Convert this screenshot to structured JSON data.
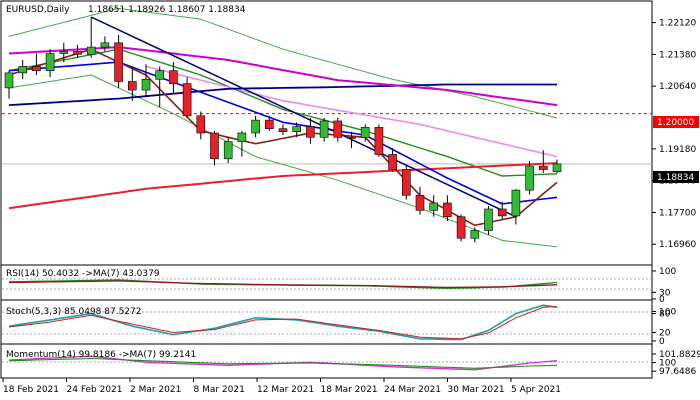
{
  "header": {
    "symbol": "EURUSD,Daily",
    "ohlc": "1.18651 1.18926 1.18607 1.18834"
  },
  "chart_data": {
    "type": "candlestick",
    "ylim": [
      1.165,
      1.226
    ],
    "y_ticks": [
      "1.22120",
      "1.21380",
      "1.20640",
      "1.19180",
      "1.18440",
      "1.17700",
      "1.16960"
    ],
    "price_label": "1.18834",
    "level_label": "1.20000",
    "level_value": 1.2,
    "x_labels": [
      "18 Feb 2021",
      "24 Feb 2021",
      "2 Mar 2021",
      "8 Mar 2021",
      "12 Mar 2021",
      "18 Mar 2021",
      "24 Mar 2021",
      "30 Mar 2021",
      "5 Apr 2021"
    ],
    "candles": [
      {
        "o": 1.206,
        "h": 1.21,
        "l": 1.2035,
        "c": 1.2095
      },
      {
        "o": 1.2095,
        "h": 1.2125,
        "l": 1.208,
        "c": 1.211
      },
      {
        "o": 1.211,
        "h": 1.214,
        "l": 1.209,
        "c": 1.21
      },
      {
        "o": 1.21,
        "h": 1.215,
        "l": 1.2085,
        "c": 1.214
      },
      {
        "o": 1.214,
        "h": 1.2165,
        "l": 1.212,
        "c": 1.2145
      },
      {
        "o": 1.2145,
        "h": 1.216,
        "l": 1.213,
        "c": 1.2138
      },
      {
        "o": 1.2138,
        "h": 1.2225,
        "l": 1.213,
        "c": 1.2155
      },
      {
        "o": 1.2155,
        "h": 1.218,
        "l": 1.2145,
        "c": 1.2165
      },
      {
        "o": 1.2165,
        "h": 1.2183,
        "l": 1.206,
        "c": 1.2075
      },
      {
        "o": 1.2075,
        "h": 1.211,
        "l": 1.203,
        "c": 1.2055
      },
      {
        "o": 1.2055,
        "h": 1.2115,
        "l": 1.204,
        "c": 1.208
      },
      {
        "o": 1.208,
        "h": 1.211,
        "l": 1.2015,
        "c": 1.21
      },
      {
        "o": 1.21,
        "h": 1.212,
        "l": 1.2045,
        "c": 1.207
      },
      {
        "o": 1.207,
        "h": 1.2085,
        "l": 1.199,
        "c": 1.1995
      },
      {
        "o": 1.1995,
        "h": 1.2005,
        "l": 1.194,
        "c": 1.1955
      },
      {
        "o": 1.1955,
        "h": 1.196,
        "l": 1.188,
        "c": 1.1895
      },
      {
        "o": 1.1895,
        "h": 1.1945,
        "l": 1.1885,
        "c": 1.1935
      },
      {
        "o": 1.1935,
        "h": 1.196,
        "l": 1.19,
        "c": 1.1955
      },
      {
        "o": 1.1955,
        "h": 1.1995,
        "l": 1.1945,
        "c": 1.1985
      },
      {
        "o": 1.1985,
        "h": 1.1995,
        "l": 1.196,
        "c": 1.1965
      },
      {
        "o": 1.1965,
        "h": 1.1975,
        "l": 1.195,
        "c": 1.1958
      },
      {
        "o": 1.1958,
        "h": 1.198,
        "l": 1.1945,
        "c": 1.197
      },
      {
        "o": 1.197,
        "h": 1.199,
        "l": 1.193,
        "c": 1.1945
      },
      {
        "o": 1.1945,
        "h": 1.199,
        "l": 1.1935,
        "c": 1.1983
      },
      {
        "o": 1.1983,
        "h": 1.199,
        "l": 1.1935,
        "c": 1.1945
      },
      {
        "o": 1.1945,
        "h": 1.1958,
        "l": 1.192,
        "c": 1.1945
      },
      {
        "o": 1.1945,
        "h": 1.1975,
        "l": 1.1935,
        "c": 1.1968
      },
      {
        "o": 1.1968,
        "h": 1.1975,
        "l": 1.19,
        "c": 1.1905
      },
      {
        "o": 1.1905,
        "h": 1.192,
        "l": 1.1865,
        "c": 1.187
      },
      {
        "o": 1.187,
        "h": 1.188,
        "l": 1.18,
        "c": 1.181
      },
      {
        "o": 1.181,
        "h": 1.183,
        "l": 1.1765,
        "c": 1.1775
      },
      {
        "o": 1.1775,
        "h": 1.181,
        "l": 1.176,
        "c": 1.1792
      },
      {
        "o": 1.1792,
        "h": 1.181,
        "l": 1.175,
        "c": 1.176
      },
      {
        "o": 1.176,
        "h": 1.1765,
        "l": 1.1703,
        "c": 1.171
      },
      {
        "o": 1.171,
        "h": 1.1735,
        "l": 1.17,
        "c": 1.1728
      },
      {
        "o": 1.1728,
        "h": 1.1785,
        "l": 1.1718,
        "c": 1.1778
      },
      {
        "o": 1.1778,
        "h": 1.1795,
        "l": 1.1755,
        "c": 1.1762
      },
      {
        "o": 1.1762,
        "h": 1.1825,
        "l": 1.1742,
        "c": 1.1822
      },
      {
        "o": 1.1822,
        "h": 1.189,
        "l": 1.1812,
        "c": 1.1878
      },
      {
        "o": 1.1878,
        "h": 1.1915,
        "l": 1.1862,
        "c": 1.187
      },
      {
        "o": 1.1865,
        "h": 1.1893,
        "l": 1.1861,
        "c": 1.1883
      }
    ],
    "indicators": [
      {
        "title": "RSI(14) 50.4032  ->MA(7) 43.0379",
        "ticks": [
          "100",
          "30",
          "0"
        ]
      },
      {
        "title": "Stoch(5,3,3) 85.0498 87.5272",
        "ticks": [
          "100",
          "80",
          "20",
          "0"
        ]
      },
      {
        "title": "Momentum(14) 99.8186  ->MA(7) 99.2141",
        "ticks": [
          "101.8829",
          "100",
          "97.6486"
        ]
      }
    ],
    "colors": {
      "bull": "#33bb33",
      "bear": "#e8202a",
      "ma_red": "#e8202a",
      "ma_dark": "#8b1a1a",
      "ma_navy": "#00007a",
      "ma_blue": "#0000dd",
      "ma_magenta": "#cc00cc",
      "ma_pink": "#ee88ee",
      "ma_green": "#228b22",
      "band": "#44aa44"
    }
  }
}
